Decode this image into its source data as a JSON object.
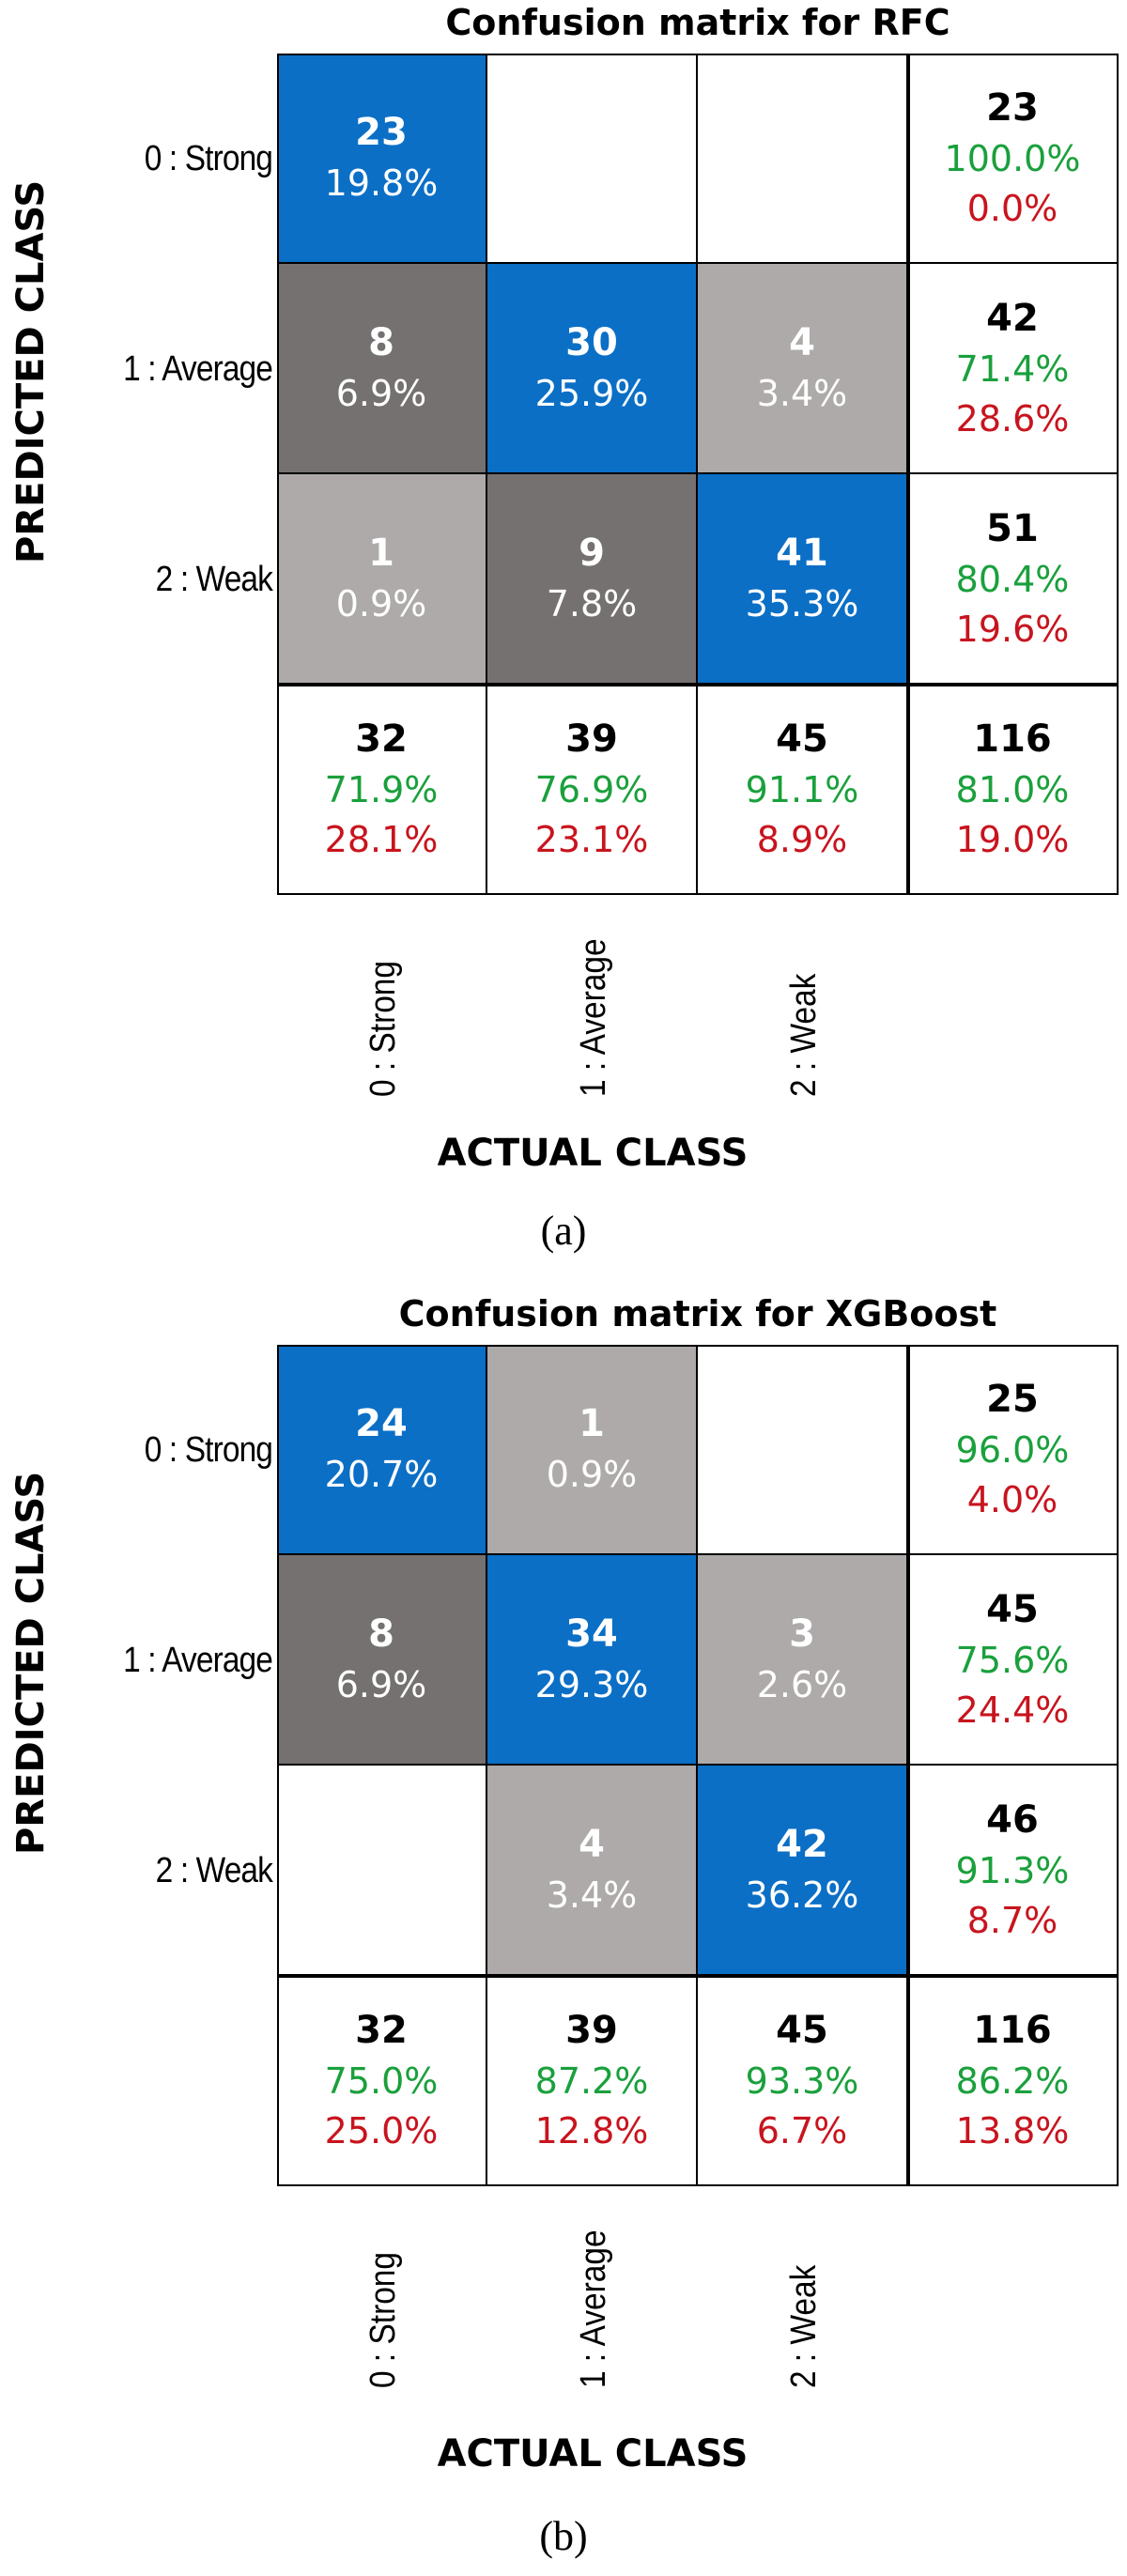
{
  "colors": {
    "diagonal": "#0b6fc6",
    "dark_gray": "#757170",
    "light_gray": "#aeaaaa",
    "empty": "#ffffff",
    "correct_pct": "#1aa03c",
    "error_pct": "#c8141e"
  },
  "chart_data": [
    {
      "type": "heatmap",
      "title": "Confusion matrix for RFC",
      "xlabel": "ACTUAL CLASS",
      "ylabel": "PREDICTED CLASS",
      "caption": "(a)",
      "row_labels": [
        "0 : Strong",
        "1 : Average",
        "2 : Weak"
      ],
      "col_labels": [
        "0 : Strong",
        "1 : Average",
        "2 : Weak"
      ],
      "matrix": [
        [
          {
            "count": "23",
            "pct": "19.8%",
            "shade": "diagonal"
          },
          {
            "count": "",
            "pct": "",
            "shade": "empty"
          },
          {
            "count": "",
            "pct": "",
            "shade": "empty"
          }
        ],
        [
          {
            "count": "8",
            "pct": "6.9%",
            "shade": "dark_gray"
          },
          {
            "count": "30",
            "pct": "25.9%",
            "shade": "diagonal"
          },
          {
            "count": "4",
            "pct": "3.4%",
            "shade": "light_gray"
          }
        ],
        [
          {
            "count": "1",
            "pct": "0.9%",
            "shade": "light_gray"
          },
          {
            "count": "9",
            "pct": "7.8%",
            "shade": "dark_gray"
          },
          {
            "count": "41",
            "pct": "35.3%",
            "shade": "diagonal"
          }
        ]
      ],
      "row_summary": [
        {
          "count": "23",
          "correct": "100.0%",
          "error": "0.0%"
        },
        {
          "count": "42",
          "correct": "71.4%",
          "error": "28.6%"
        },
        {
          "count": "51",
          "correct": "80.4%",
          "error": "19.6%"
        }
      ],
      "col_summary": [
        {
          "count": "32",
          "correct": "71.9%",
          "error": "28.1%"
        },
        {
          "count": "39",
          "correct": "76.9%",
          "error": "23.1%"
        },
        {
          "count": "45",
          "correct": "91.1%",
          "error": "8.9%"
        }
      ],
      "total": {
        "count": "116",
        "correct": "81.0%",
        "error": "19.0%"
      }
    },
    {
      "type": "heatmap",
      "title": "Confusion matrix for XGBoost",
      "xlabel": "ACTUAL CLASS",
      "ylabel": "PREDICTED CLASS",
      "caption": "(b)",
      "row_labels": [
        "0 : Strong",
        "1 : Average",
        "2 : Weak"
      ],
      "col_labels": [
        "0 : Strong",
        "1 : Average",
        "2 : Weak"
      ],
      "matrix": [
        [
          {
            "count": "24",
            "pct": "20.7%",
            "shade": "diagonal"
          },
          {
            "count": "1",
            "pct": "0.9%",
            "shade": "light_gray"
          },
          {
            "count": "",
            "pct": "",
            "shade": "empty"
          }
        ],
        [
          {
            "count": "8",
            "pct": "6.9%",
            "shade": "dark_gray"
          },
          {
            "count": "34",
            "pct": "29.3%",
            "shade": "diagonal"
          },
          {
            "count": "3",
            "pct": "2.6%",
            "shade": "light_gray"
          }
        ],
        [
          {
            "count": "",
            "pct": "",
            "shade": "empty"
          },
          {
            "count": "4",
            "pct": "3.4%",
            "shade": "light_gray"
          },
          {
            "count": "42",
            "pct": "36.2%",
            "shade": "diagonal"
          }
        ]
      ],
      "row_summary": [
        {
          "count": "25",
          "correct": "96.0%",
          "error": "4.0%"
        },
        {
          "count": "45",
          "correct": "75.6%",
          "error": "24.4%"
        },
        {
          "count": "46",
          "correct": "91.3%",
          "error": "8.7%"
        }
      ],
      "col_summary": [
        {
          "count": "32",
          "correct": "75.0%",
          "error": "25.0%"
        },
        {
          "count": "39",
          "correct": "87.2%",
          "error": "12.8%"
        },
        {
          "count": "45",
          "correct": "93.3%",
          "error": "6.7%"
        }
      ],
      "total": {
        "count": "116",
        "correct": "86.2%",
        "error": "13.8%"
      }
    }
  ]
}
